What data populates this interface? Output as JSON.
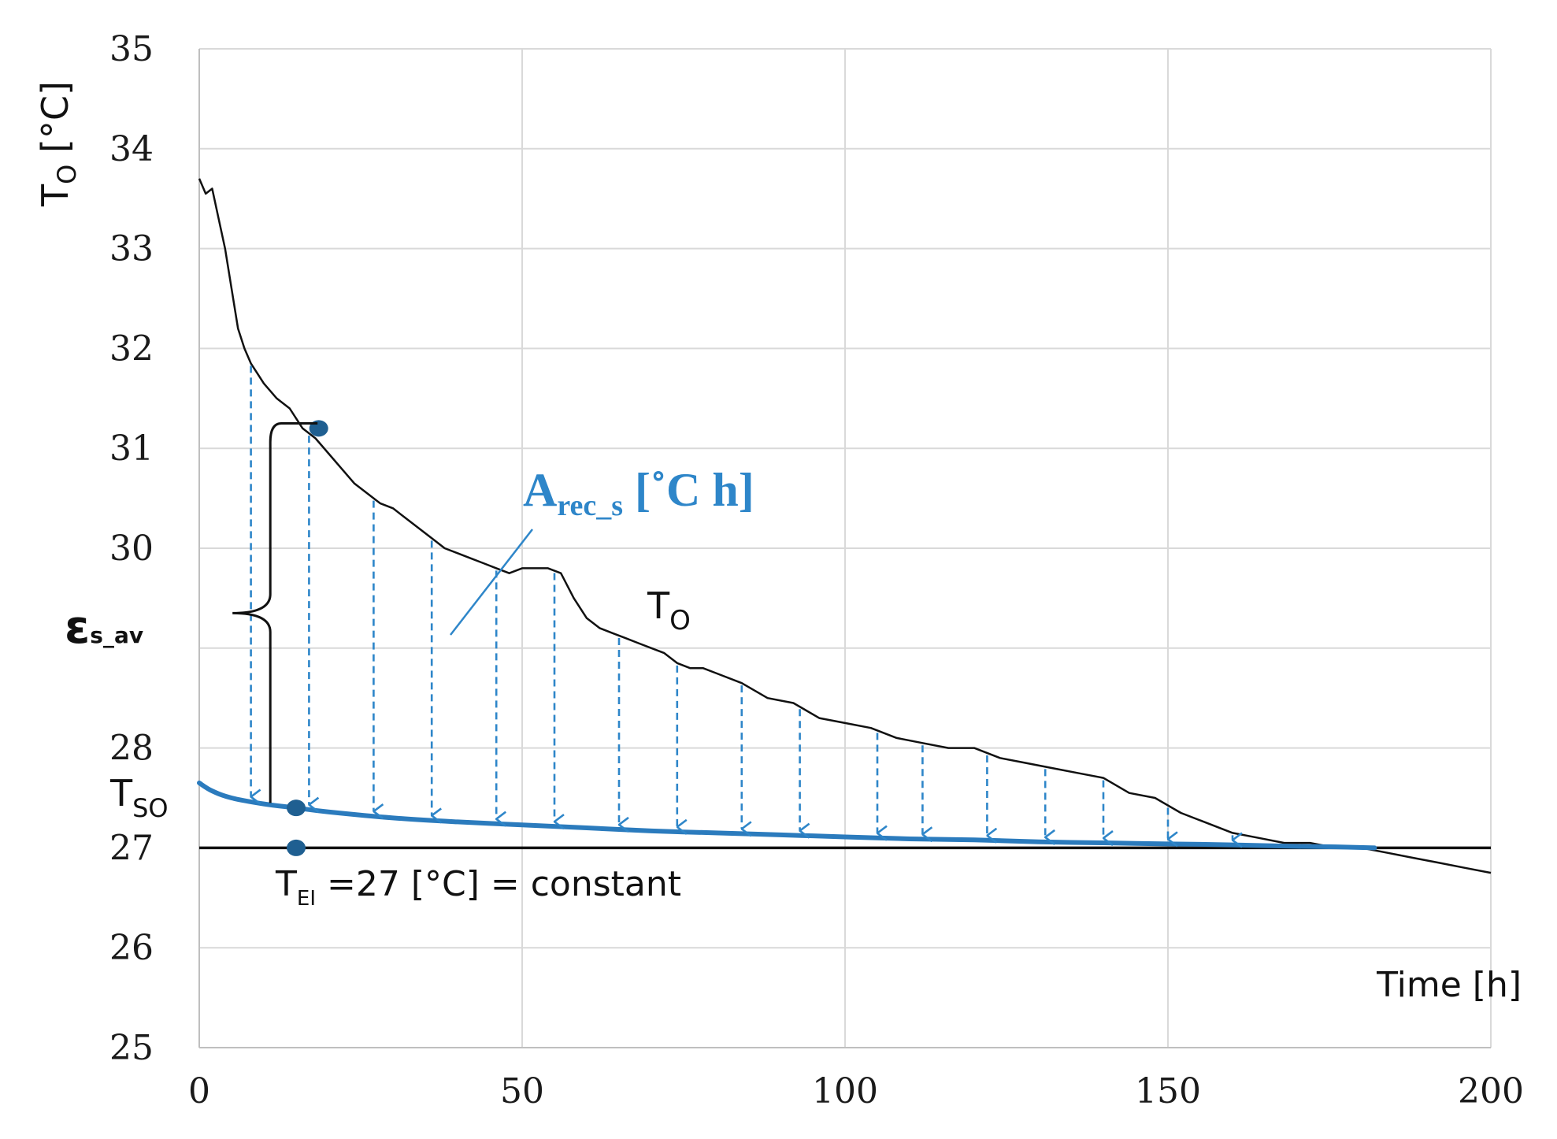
{
  "chart_data": {
    "type": "line",
    "xlim": [
      0,
      200
    ],
    "ylim": [
      25,
      35
    ],
    "x_ticks": [
      0,
      50,
      100,
      150,
      200
    ],
    "y_ticks": [
      25,
      26,
      27,
      28,
      29,
      30,
      31,
      32,
      33,
      34,
      35
    ],
    "x_tick_labels": [
      "0",
      "50",
      "100",
      "150",
      "200"
    ],
    "y_tick_labels": [
      "25",
      "26",
      "27",
      "28",
      "",
      "30",
      "31",
      "32",
      "33",
      "34",
      "35"
    ],
    "grid": true,
    "xlabel": "Time [h]",
    "ylabel": {
      "main": "T",
      "sub": "O",
      "unit": " [°C]"
    },
    "series": [
      {
        "name": "T_O",
        "color": "#111111",
        "x": [
          0,
          1,
          2,
          3,
          4,
          5,
          6,
          7,
          8,
          9,
          10,
          12,
          14,
          16,
          18,
          20,
          22,
          24,
          26,
          28,
          30,
          32,
          34,
          36,
          38,
          40,
          42,
          44,
          46,
          48,
          50,
          52,
          54,
          56,
          58,
          60,
          62,
          64,
          66,
          68,
          70,
          72,
          74,
          76,
          78,
          80,
          84,
          88,
          92,
          96,
          100,
          104,
          108,
          112,
          116,
          120,
          124,
          128,
          132,
          136,
          140,
          144,
          148,
          152,
          156,
          160,
          164,
          168,
          172,
          176,
          180,
          184,
          188,
          192,
          196,
          200
        ],
        "y": [
          33.7,
          33.55,
          33.6,
          33.3,
          33.0,
          32.6,
          32.2,
          32.0,
          31.85,
          31.75,
          31.65,
          31.5,
          31.4,
          31.2,
          31.1,
          30.95,
          30.8,
          30.65,
          30.55,
          30.45,
          30.4,
          30.3,
          30.2,
          30.1,
          30.0,
          29.95,
          29.9,
          29.85,
          29.8,
          29.75,
          29.8,
          29.8,
          29.8,
          29.75,
          29.5,
          29.3,
          29.2,
          29.15,
          29.1,
          29.05,
          29.0,
          28.95,
          28.85,
          28.8,
          28.8,
          28.75,
          28.65,
          28.5,
          28.45,
          28.3,
          28.25,
          28.2,
          28.1,
          28.05,
          28.0,
          28.0,
          27.9,
          27.85,
          27.8,
          27.75,
          27.7,
          27.55,
          27.5,
          27.35,
          27.25,
          27.15,
          27.1,
          27.05,
          27.05,
          27.0,
          27.0,
          26.95,
          26.9,
          26.85,
          26.8,
          26.75
        ]
      },
      {
        "name": "T_SO",
        "color": "#2b7bbd",
        "x": [
          0,
          2,
          5,
          10,
          15,
          20,
          30,
          40,
          50,
          60,
          70,
          80,
          90,
          100,
          110,
          120,
          130,
          140,
          150,
          160,
          170,
          176,
          182
        ],
        "y": [
          27.65,
          27.57,
          27.5,
          27.44,
          27.4,
          27.36,
          27.3,
          27.26,
          27.23,
          27.2,
          27.17,
          27.15,
          27.13,
          27.11,
          27.09,
          27.08,
          27.06,
          27.05,
          27.04,
          27.03,
          27.015,
          27.01,
          27.0
        ]
      },
      {
        "name": "T_EI",
        "color": "#111111",
        "x": [
          0,
          200
        ],
        "y": [
          27,
          27
        ]
      }
    ],
    "arrows_x": [
      8,
      17,
      27,
      36,
      46,
      55,
      65,
      74,
      84,
      93,
      105,
      112,
      122,
      131,
      140,
      150,
      160
    ],
    "markers": [
      {
        "x": 18.5,
        "y": 31.2,
        "color": "#1f5f91"
      },
      {
        "x": 15,
        "y": 27.4,
        "color": "#1f5f91"
      },
      {
        "x": 15,
        "y": 27.0,
        "color": "#1f5f91"
      }
    ],
    "brace": {
      "x": 11,
      "y_top": 31.25,
      "y_bottom": 27.45
    },
    "annotations": {
      "area_label": {
        "main": "A",
        "sub": "rec_s",
        "rest": " [˚C h]"
      },
      "to_label": {
        "main": "T",
        "sub": "O"
      },
      "tso_label": {
        "main": "T",
        "sub": "SO"
      },
      "tei_label": {
        "main": "T",
        "sub": "EI",
        "rest": " =27 [°C] = constant"
      },
      "eps_label": {
        "main": "ε",
        "sub": "s_av"
      }
    }
  }
}
